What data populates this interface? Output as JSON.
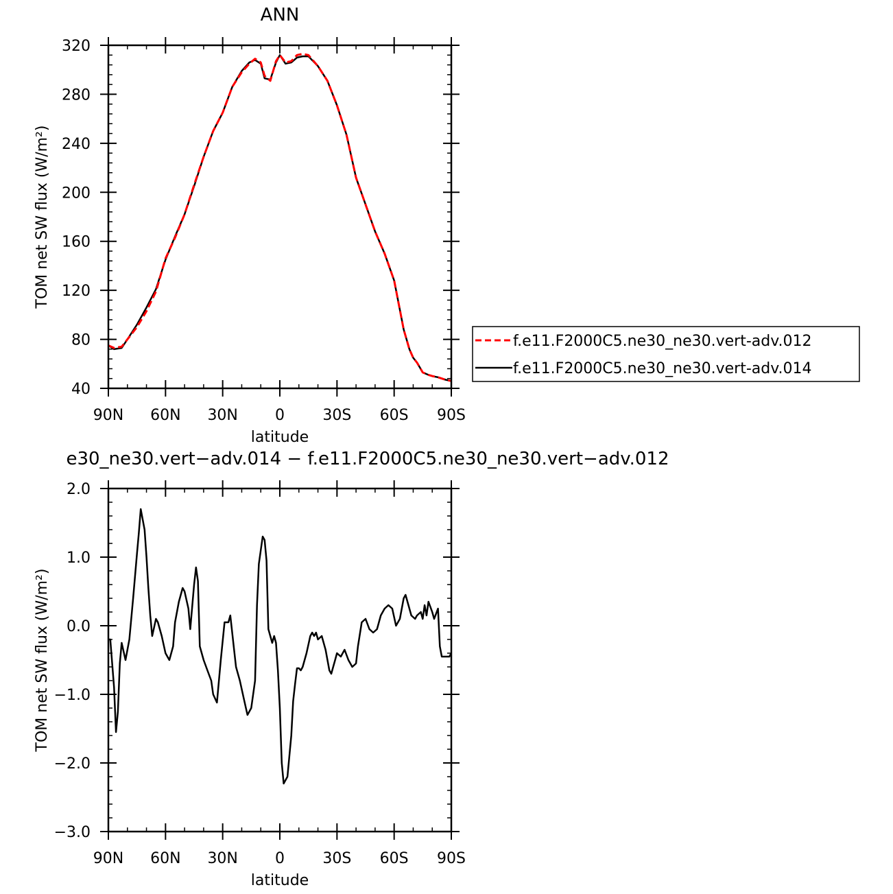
{
  "chart_data": [
    {
      "type": "line",
      "title": "ANN",
      "xlabel": "latitude",
      "ylabel": "TOM net SW flux (W/m²)",
      "xlim": [
        90,
        -90
      ],
      "ylim": [
        40,
        320
      ],
      "xticks": [
        90,
        60,
        30,
        0,
        -30,
        -60,
        -90
      ],
      "xtick_labels": [
        "90N",
        "60N",
        "30N",
        "0",
        "30S",
        "60S",
        "90S"
      ],
      "yticks": [
        40,
        80,
        120,
        160,
        200,
        240,
        280,
        320
      ],
      "ytick_labels": [
        "40",
        "80",
        "120",
        "160",
        "200",
        "240",
        "280",
        "320"
      ],
      "legend": "right",
      "series": [
        {
          "name": "f.e11.F2000C5.ne30_ne30.vert-adv.012",
          "color": "#ff0000",
          "dash": true,
          "x": [
            90,
            87,
            83,
            80,
            75,
            70,
            65,
            60,
            55,
            50,
            45,
            40,
            35,
            30,
            25,
            20,
            16,
            13,
            10,
            8,
            5,
            2,
            0,
            -3,
            -6,
            -9,
            -12,
            -15,
            -20,
            -25,
            -30,
            -35,
            -40,
            -45,
            -50,
            -55,
            -60,
            -65,
            -68,
            -70,
            -72,
            -75,
            -78,
            -80,
            -83,
            -87,
            -90
          ],
          "y": [
            75,
            73,
            74,
            80,
            90,
            103,
            119,
            146,
            163,
            182,
            206,
            229,
            250,
            265,
            286,
            298,
            305,
            309,
            306,
            295,
            291,
            307,
            312,
            306,
            307,
            312,
            313,
            312,
            303,
            291,
            271,
            247,
            212,
            190,
            168,
            150,
            128,
            88,
            72,
            65,
            61,
            53,
            51,
            50,
            49,
            47,
            46
          ]
        },
        {
          "name": "f.e11.F2000C5.ne30_ne30.vert-adv.014",
          "color": "#000000",
          "dash": false,
          "x": [
            90,
            87,
            83,
            80,
            75,
            70,
            65,
            60,
            55,
            50,
            45,
            40,
            35,
            30,
            25,
            20,
            16,
            13,
            10,
            8,
            5,
            2,
            0,
            -3,
            -6,
            -9,
            -12,
            -15,
            -20,
            -25,
            -30,
            -35,
            -40,
            -45,
            -50,
            -55,
            -60,
            -65,
            -68,
            -70,
            -72,
            -75,
            -78,
            -80,
            -83,
            -87,
            -90
          ],
          "y": [
            75,
            72,
            73,
            80,
            92,
            106,
            121,
            145,
            164,
            182,
            205,
            229,
            250,
            265,
            286,
            299,
            306,
            308,
            305,
            293,
            292,
            306,
            312,
            305,
            306,
            310,
            311,
            311,
            303,
            291,
            271,
            247,
            212,
            190,
            168,
            150,
            128,
            88,
            72,
            65,
            61,
            53,
            51,
            50,
            49,
            47,
            46
          ]
        }
      ]
    },
    {
      "type": "line",
      "title": "e30_ne30.vert−adv.014 − f.e11.F2000C5.ne30_ne30.vert−adv.012",
      "xlabel": "latitude",
      "ylabel": "TOM net SW flux (W/m²)",
      "xlim": [
        90,
        -90
      ],
      "ylim": [
        -3.0,
        2.0
      ],
      "xticks": [
        90,
        60,
        30,
        0,
        -30,
        -60,
        -90
      ],
      "xtick_labels": [
        "90N",
        "60N",
        "30N",
        "0",
        "30S",
        "60S",
        "90S"
      ],
      "yticks": [
        -3.0,
        -2.0,
        -1.0,
        0.0,
        1.0,
        2.0
      ],
      "ytick_labels": [
        "−3.0",
        "−2.0",
        "−1.0",
        "0.0",
        "1.0",
        "2.0"
      ],
      "series": [
        {
          "color": "#000000",
          "x": [
            90,
            89,
            87,
            86,
            85,
            84,
            83,
            81,
            79,
            77,
            75,
            74,
            73,
            71,
            70,
            69,
            68,
            67,
            65,
            64,
            62,
            60,
            58,
            56,
            55,
            53,
            51,
            50,
            48,
            47,
            45,
            44,
            43,
            42,
            40,
            38,
            36,
            35,
            33,
            31,
            29,
            27,
            26,
            24,
            23,
            21,
            19,
            17,
            15,
            13,
            12,
            11,
            9,
            8,
            7,
            6,
            4,
            3,
            2,
            1,
            0,
            -1,
            -2,
            -4,
            -6,
            -7,
            -8,
            -9,
            -10,
            -11,
            -12,
            -14,
            -16,
            -17,
            -18,
            -19,
            -20,
            -22,
            -24,
            -26,
            -27,
            -28,
            -29,
            -30,
            -32,
            -34,
            -36,
            -38,
            -40,
            -41,
            -43,
            -45,
            -47,
            -49,
            -51,
            -53,
            -54,
            -55,
            -57,
            -59,
            -61,
            -63,
            -65,
            -66,
            -67,
            -69,
            -71,
            -72,
            -74,
            -75,
            -76,
            -77,
            -78,
            -80,
            -81,
            -83,
            -84,
            -85,
            -86,
            -87,
            -88,
            -89,
            -90
          ],
          "y": [
            -0.2,
            -0.2,
            -0.9,
            -1.55,
            -1.25,
            -0.55,
            -0.25,
            -0.5,
            -0.2,
            0.4,
            1.05,
            1.35,
            1.7,
            1.4,
            1.0,
            0.55,
            0.15,
            -0.15,
            0.1,
            0.05,
            -0.15,
            -0.4,
            -0.5,
            -0.3,
            0.05,
            0.35,
            0.55,
            0.5,
            0.25,
            -0.05,
            0.6,
            0.85,
            0.65,
            -0.3,
            -0.5,
            -0.65,
            -0.8,
            -1.0,
            -1.12,
            -0.5,
            0.05,
            0.05,
            0.15,
            -0.35,
            -0.6,
            -0.8,
            -1.05,
            -1.3,
            -1.2,
            -0.8,
            0.3,
            0.9,
            1.3,
            1.25,
            0.95,
            -0.05,
            -0.25,
            -0.15,
            -0.25,
            -0.65,
            -1.2,
            -2.0,
            -2.3,
            -2.2,
            -1.6,
            -1.1,
            -0.85,
            -0.62,
            -0.62,
            -0.65,
            -0.6,
            -0.4,
            -0.15,
            -0.1,
            -0.15,
            -0.1,
            -0.2,
            -0.15,
            -0.35,
            -0.65,
            -0.7,
            -0.6,
            -0.5,
            -0.4,
            -0.45,
            -0.35,
            -0.5,
            -0.6,
            -0.55,
            -0.3,
            0.05,
            0.1,
            -0.05,
            -0.1,
            -0.05,
            0.15,
            0.2,
            0.25,
            0.3,
            0.25,
            0.0,
            0.1,
            0.4,
            0.45,
            0.35,
            0.15,
            0.1,
            0.15,
            0.2,
            0.1,
            0.3,
            0.15,
            0.35,
            0.2,
            0.1,
            0.25,
            -0.3,
            -0.45,
            -0.45,
            -0.45,
            -0.45,
            -0.45,
            -0.4
          ]
        }
      ]
    }
  ]
}
